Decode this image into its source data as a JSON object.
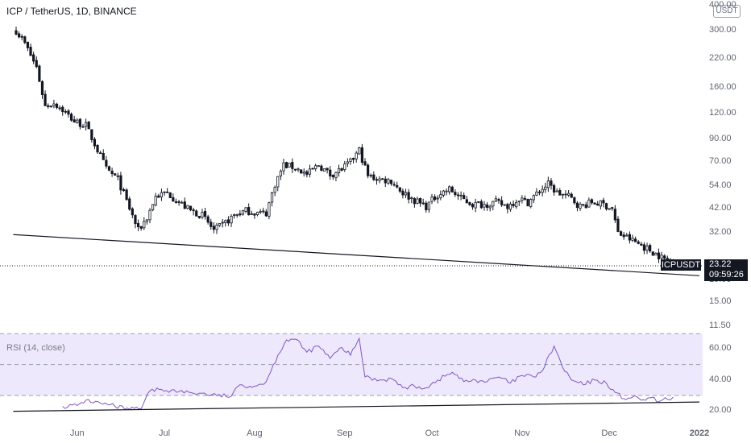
{
  "header": {
    "title": "ICP / TetherUS, 1D, BINANCE",
    "unit_badge": "USDT"
  },
  "rsi": {
    "title": "RSI (14, close)",
    "band_upper": 70,
    "band_lower": 30,
    "line_color": "#7e57c2",
    "band_color": "#ede8fb"
  },
  "last_price": {
    "symbol": "ICPUSDT",
    "value": "23.22",
    "countdown": "09:59:26"
  },
  "colors": {
    "candle": "#131722",
    "text": "#5f6470",
    "tag_bg": "#131722"
  },
  "chart_data": [
    {
      "type": "candlestick",
      "title": "ICP / TetherUS, 1D, BINANCE",
      "yscale": "log",
      "ylim": [
        10.2,
        420
      ],
      "y_ticks": [
        "400.00",
        "300.00",
        "220.00",
        "160.00",
        "120.00",
        "90.00",
        "70.00",
        "54.00",
        "42.00",
        "32.00",
        "19.00",
        "15.00",
        "11.50"
      ],
      "x_ticks": [
        "Jun",
        "Jul",
        "Aug",
        "Sep",
        "Oct",
        "Nov",
        "Dec",
        "2022"
      ],
      "x_range": [
        "2021-05-11",
        "2022-01-01"
      ],
      "series": [
        {
          "close_points": [
            [
              "2021-05-11",
              300
            ],
            [
              "2021-05-14",
              260
            ],
            [
              "2021-05-18",
              200
            ],
            [
              "2021-05-21",
              130
            ],
            [
              "2021-05-24",
              135
            ],
            [
              "2021-05-27",
              125
            ],
            [
              "2021-05-31",
              110
            ],
            [
              "2021-06-04",
              105
            ],
            [
              "2021-06-08",
              80
            ],
            [
              "2021-06-11",
              65
            ],
            [
              "2021-06-15",
              58
            ],
            [
              "2021-06-19",
              42
            ],
            [
              "2021-06-22",
              33
            ],
            [
              "2021-06-25",
              38
            ],
            [
              "2021-06-28",
              48
            ],
            [
              "2021-07-02",
              50
            ],
            [
              "2021-07-06",
              45
            ],
            [
              "2021-07-10",
              41
            ],
            [
              "2021-07-14",
              39
            ],
            [
              "2021-07-18",
              33
            ],
            [
              "2021-07-21",
              35
            ],
            [
              "2021-07-25",
              39
            ],
            [
              "2021-07-29",
              41
            ],
            [
              "2021-08-02",
              40
            ],
            [
              "2021-08-05",
              40
            ],
            [
              "2021-08-08",
              55
            ],
            [
              "2021-08-11",
              68
            ],
            [
              "2021-08-15",
              66
            ],
            [
              "2021-08-19",
              61
            ],
            [
              "2021-08-23",
              68
            ],
            [
              "2021-08-27",
              61
            ],
            [
              "2021-08-31",
              65
            ],
            [
              "2021-09-03",
              70
            ],
            [
              "2021-09-06",
              80
            ],
            [
              "2021-09-09",
              60
            ],
            [
              "2021-09-13",
              58
            ],
            [
              "2021-09-17",
              57
            ],
            [
              "2021-09-21",
              50
            ],
            [
              "2021-09-25",
              46
            ],
            [
              "2021-09-29",
              43
            ],
            [
              "2021-10-03",
              49
            ],
            [
              "2021-10-07",
              52
            ],
            [
              "2021-10-11",
              47
            ],
            [
              "2021-10-15",
              44
            ],
            [
              "2021-10-19",
              44
            ],
            [
              "2021-10-23",
              45
            ],
            [
              "2021-10-27",
              43
            ],
            [
              "2021-10-31",
              47
            ],
            [
              "2021-11-03",
              45
            ],
            [
              "2021-11-07",
              51
            ],
            [
              "2021-11-10",
              55
            ],
            [
              "2021-11-13",
              50
            ],
            [
              "2021-11-17",
              48
            ],
            [
              "2021-11-21",
              43
            ],
            [
              "2021-11-25",
              45
            ],
            [
              "2021-11-29",
              44
            ],
            [
              "2021-12-02",
              42
            ],
            [
              "2021-12-04",
              32
            ],
            [
              "2021-12-08",
              30
            ],
            [
              "2021-12-12",
              28
            ],
            [
              "2021-12-16",
              26
            ],
            [
              "2021-12-20",
              24
            ],
            [
              "2021-12-23",
              23.22
            ]
          ]
        }
      ],
      "trendline": {
        "from": [
          "2021-05-10",
          31.5
        ],
        "to": [
          "2022-01-01",
          20.0
        ]
      }
    },
    {
      "type": "line",
      "title": "RSI (14, close)",
      "ylim": [
        17,
        67
      ],
      "y_ticks": [
        "60.00",
        "40.00",
        "20.00"
      ],
      "series": [
        {
          "name": "RSI (14, close)",
          "points": [
            [
              "2021-05-27",
              23
            ],
            [
              "2021-06-01",
              23.5
            ],
            [
              "2021-06-04",
              27
            ],
            [
              "2021-06-09",
              25
            ],
            [
              "2021-06-14",
              23
            ],
            [
              "2021-06-19",
              21
            ],
            [
              "2021-06-23",
              21.5
            ],
            [
              "2021-06-26",
              33
            ],
            [
              "2021-06-30",
              34
            ],
            [
              "2021-07-06",
              32.5
            ],
            [
              "2021-07-13",
              31.5
            ],
            [
              "2021-07-19",
              30
            ],
            [
              "2021-07-24",
              29.5
            ],
            [
              "2021-07-27",
              37
            ],
            [
              "2021-08-01",
              36
            ],
            [
              "2021-08-05",
              39
            ],
            [
              "2021-08-09",
              56
            ],
            [
              "2021-08-12",
              66
            ],
            [
              "2021-08-15",
              66.5
            ],
            [
              "2021-08-19",
              58
            ],
            [
              "2021-08-23",
              62
            ],
            [
              "2021-08-27",
              54
            ],
            [
              "2021-08-31",
              61
            ],
            [
              "2021-09-03",
              56
            ],
            [
              "2021-09-06",
              67
            ],
            [
              "2021-09-08",
              42
            ],
            [
              "2021-09-13",
              40
            ],
            [
              "2021-09-17",
              41
            ],
            [
              "2021-09-21",
              35
            ],
            [
              "2021-09-25",
              36
            ],
            [
              "2021-09-29",
              35
            ],
            [
              "2021-10-03",
              40
            ],
            [
              "2021-10-08",
              45
            ],
            [
              "2021-10-12",
              39
            ],
            [
              "2021-10-16",
              40
            ],
            [
              "2021-10-20",
              39
            ],
            [
              "2021-10-24",
              42
            ],
            [
              "2021-10-28",
              38
            ],
            [
              "2021-11-01",
              43
            ],
            [
              "2021-11-05",
              42
            ],
            [
              "2021-11-08",
              46
            ],
            [
              "2021-11-12",
              62
            ],
            [
              "2021-11-15",
              48
            ],
            [
              "2021-11-18",
              40
            ],
            [
              "2021-11-22",
              37
            ],
            [
              "2021-11-26",
              40
            ],
            [
              "2021-11-30",
              38
            ],
            [
              "2021-12-03",
              32
            ],
            [
              "2021-12-06",
              28
            ],
            [
              "2021-12-09",
              29
            ],
            [
              "2021-12-12",
              27
            ],
            [
              "2021-12-15",
              28.5
            ],
            [
              "2021-12-18",
              26
            ],
            [
              "2021-12-21",
              27.5
            ],
            [
              "2021-12-23",
              29
            ]
          ]
        }
      ],
      "trendline": {
        "from": [
          "2021-05-10",
          19.8
        ],
        "to": [
          "2022-01-01",
          25.8
        ]
      }
    }
  ]
}
